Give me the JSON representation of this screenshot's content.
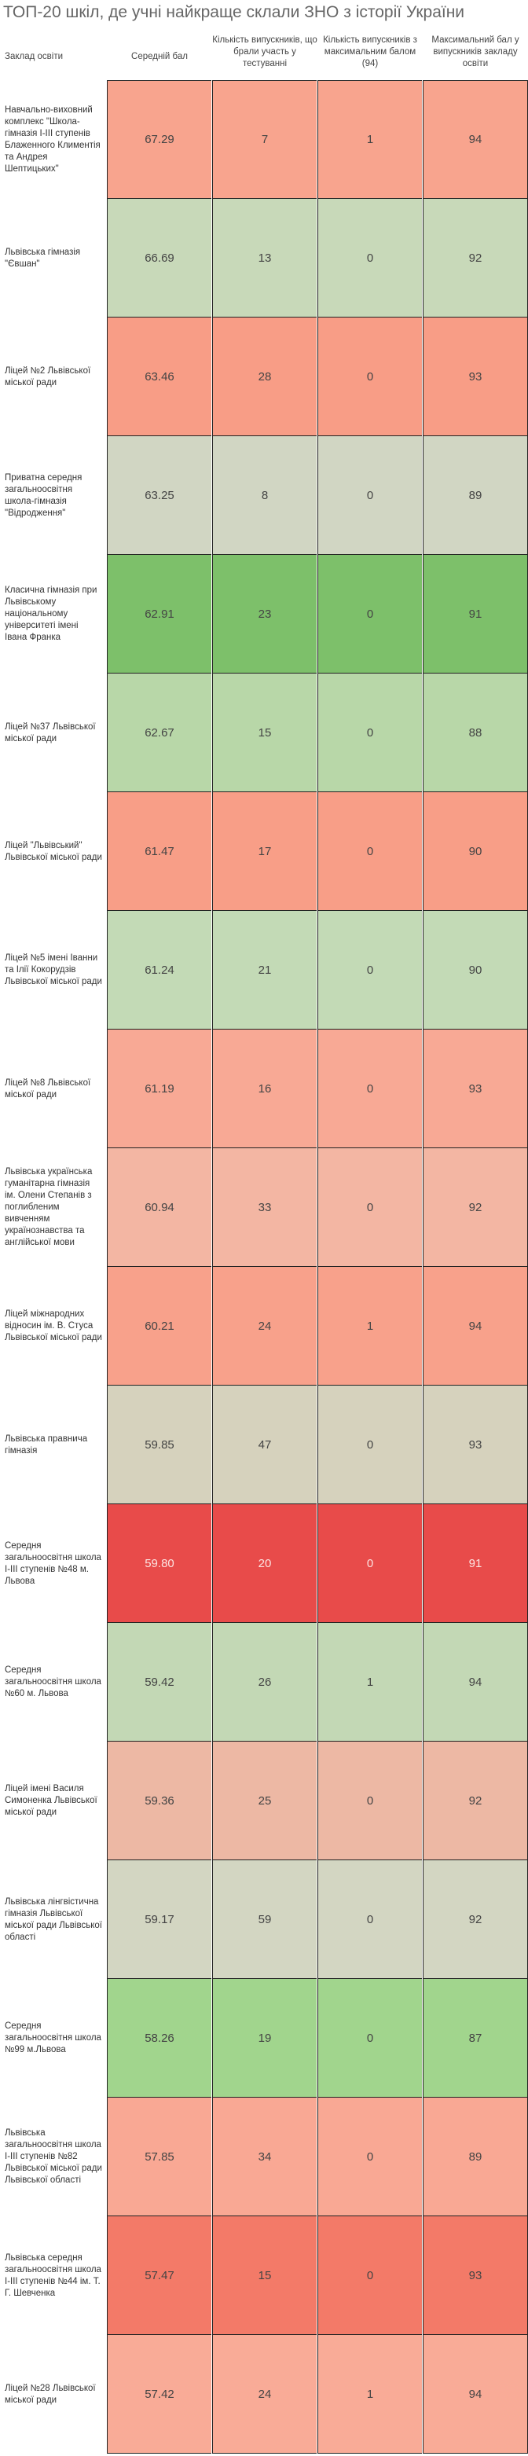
{
  "title": "ТОП-20 шкіл, де учні найкраще склали ЗНО з історії України",
  "headers": {
    "school": "Заклад освіти",
    "avg": "Середній бал",
    "participants": "Кількість випускників, що брали участь у тестуванні",
    "max_count": "Кількість випускників з максимальним балом (94)",
    "max_score": "Максимальний бал у випускників закладу освіти"
  },
  "rows": [
    {
      "name": "Навчально-виховний комплекс \"Школа-гімназія І-ІІІ ступенів Блаженного Климентія та Андрея Шептицьких\"",
      "avg": "67.29",
      "part": "7",
      "maxcnt": "1",
      "maxscore": "94",
      "color": "#f8a48e"
    },
    {
      "name": "Львівська гімназія \"Євшан\"",
      "avg": "66.69",
      "part": "13",
      "maxcnt": "0",
      "maxscore": "92",
      "color": "#c8d9b9"
    },
    {
      "name": "Ліцей №2 Львівської міської ради",
      "avg": "63.46",
      "part": "28",
      "maxcnt": "0",
      "maxscore": "93",
      "color": "#f89d86"
    },
    {
      "name": "Приватна середня загальноосвітня школа-гімназія \"Відродження\"",
      "avg": "63.25",
      "part": "8",
      "maxcnt": "0",
      "maxscore": "89",
      "color": "#d1d6c3"
    },
    {
      "name": "Класична гімназія при Львівському національному університеті імені Івана Франка",
      "avg": "62.91",
      "part": "23",
      "maxcnt": "0",
      "maxscore": "91",
      "color": "#7dc06a"
    },
    {
      "name": "Ліцей №37 Львівської міської ради",
      "avg": "62.67",
      "part": "15",
      "maxcnt": "0",
      "maxscore": "88",
      "color": "#b8d7a8"
    },
    {
      "name": "Ліцей \"Львівський\" Львівської міської ради",
      "avg": "61.47",
      "part": "17",
      "maxcnt": "0",
      "maxscore": "90",
      "color": "#f89e87"
    },
    {
      "name": "Ліцей №5 імені Іванни та Ілії Кокорудзів Львівської міської ради",
      "avg": "61.24",
      "part": "21",
      "maxcnt": "0",
      "maxscore": "90",
      "color": "#c3dab6"
    },
    {
      "name": "Ліцей №8 Львівської міської ради",
      "avg": "61.19",
      "part": "16",
      "maxcnt": "0",
      "maxscore": "93",
      "color": "#f8a995"
    },
    {
      "name": "Львівська українська гуманітарна гімназія ім. Олени Степанів з поглибленим вивченням українознавства та англійської мови",
      "avg": "60.94",
      "part": "33",
      "maxcnt": "0",
      "maxscore": "92",
      "color": "#f3b6a3"
    },
    {
      "name": "Ліцей міжнародних відносин ім. В. Стуса Львівської міської ради",
      "avg": "60.21",
      "part": "24",
      "maxcnt": "1",
      "maxscore": "94",
      "color": "#f8a18b"
    },
    {
      "name": "Львівська правнича гімназія",
      "avg": "59.85",
      "part": "47",
      "maxcnt": "0",
      "maxscore": "93",
      "color": "#d6d2bd"
    },
    {
      "name": "Середня загальноосвітня школа І-ІІІ ступенів №48 м. Львова",
      "avg": "59.80",
      "part": "20",
      "maxcnt": "0",
      "maxscore": "91",
      "color": "#e84b4a",
      "light": true
    },
    {
      "name": "Середня загальноосвітня школа №60 м. Львова",
      "avg": "59.42",
      "part": "26",
      "maxcnt": "1",
      "maxscore": "94",
      "color": "#c3d8b5"
    },
    {
      "name": "Ліцей імені Василя Симоненка Львівської міської ради",
      "avg": "59.36",
      "part": "25",
      "maxcnt": "0",
      "maxscore": "92",
      "color": "#edb8a4"
    },
    {
      "name": "Львівська лінгвістична гімназія Львівської міської ради Львівської області",
      "avg": "59.17",
      "part": "59",
      "maxcnt": "0",
      "maxscore": "92",
      "color": "#d3d6c2"
    },
    {
      "name": "Середня загальноосвітня школа №99 м.Львова",
      "avg": "58.26",
      "part": "19",
      "maxcnt": "0",
      "maxscore": "87",
      "color": "#a1d58d"
    },
    {
      "name": "Львівська загальноосвітня школа І-ІІІ ступенів №82 Львівської міської ради Львівської області",
      "avg": "57.85",
      "part": "34",
      "maxcnt": "0",
      "maxscore": "89",
      "color": "#f9a894"
    },
    {
      "name": "Львівська середня загальноосвітня школа І-ІІІ ступенів №44 ім. Т. Г. Шевченка",
      "avg": "57.47",
      "part": "15",
      "maxcnt": "0",
      "maxscore": "93",
      "color": "#f37a68"
    },
    {
      "name": "Ліцей №28 Львівської міської ради",
      "avg": "57.42",
      "part": "24",
      "maxcnt": "1",
      "maxscore": "94",
      "color": "#f9ab97"
    }
  ]
}
